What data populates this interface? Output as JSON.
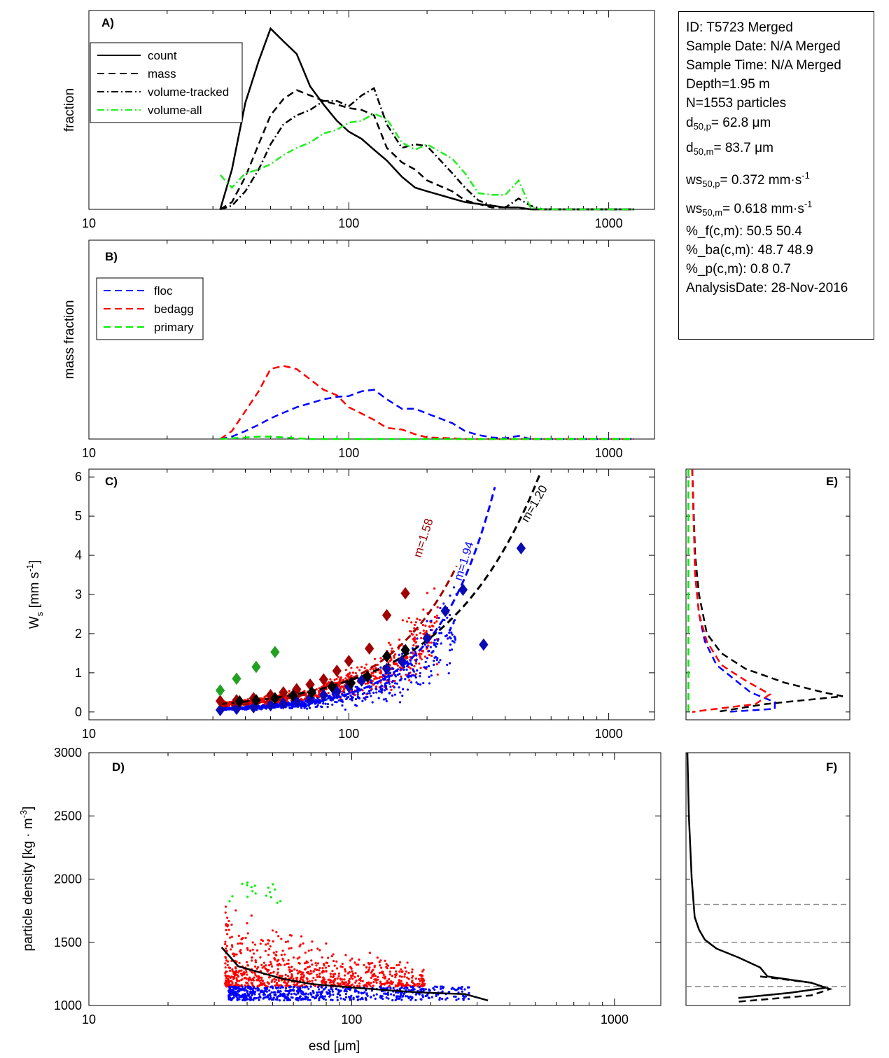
{
  "colors": {
    "floc": "#0000ff",
    "bedagg": "#ff0000",
    "primary": "#00ee00",
    "floc_dark": "#0a0ab4",
    "bedagg_dark": "#a00000",
    "primary_dark": "#22a022",
    "volume_all": "#22ee22",
    "ref_line": "#888888"
  },
  "info_box": {
    "lines": [
      "ID: T5723 Merged",
      "Sample Date: N/A Merged",
      "Sample Time: N/A Merged",
      "Depth=1.95 m",
      "N=1553 particles"
    ],
    "d50p_prefix": "d",
    "d50p_sub": "50,p",
    "d50p_value": "=  62.8 μm",
    "d50m_prefix": "d",
    "d50m_sub": "50,m",
    "d50m_value": "=  83.7 μm",
    "ws50p_prefix": "ws",
    "ws50p_sub": "50,p",
    "ws50p_value": "= 0.372 mm·s",
    "ws50p_sup": "-1",
    "ws50m_prefix": "ws",
    "ws50m_sub": "50,m",
    "ws50m_value": "= 0.618 mm·s",
    "ws50m_sup": "-1",
    "lines2": [
      "%_f(c,m): 50.5 50.4",
      "%_ba(c,m): 48.7 48.9",
      "%_p(c,m): 0.8 0.7",
      "AnalysisDate: 28-Nov-2016"
    ]
  },
  "chart_data": [
    {
      "panel": "A)",
      "type": "line",
      "x_scale": "log",
      "xlim": [
        10,
        1500
      ],
      "ylabel": "fraction",
      "x_tick_labels": [
        "10",
        "100",
        "1000"
      ],
      "legend_position": "top-left",
      "x": [
        32,
        35.5,
        40,
        45,
        50,
        56,
        63,
        71,
        80,
        90,
        100,
        112,
        125,
        140,
        160,
        180,
        200,
        250,
        280,
        315,
        355,
        400,
        450,
        500,
        560,
        1250
      ],
      "series": [
        {
          "name": "count",
          "style": "solid",
          "color": "#000000",
          "values": [
            0,
            0.22,
            0.59,
            0.82,
            1.0,
            0.93,
            0.86,
            0.68,
            0.58,
            0.49,
            0.43,
            0.39,
            0.33,
            0.27,
            0.18,
            0.12,
            0.1,
            0.06,
            0.04,
            0.03,
            0.02,
            0.01,
            0.01,
            0,
            0,
            0
          ]
        },
        {
          "name": "mass",
          "style": "dashed",
          "color": "#000000",
          "values": [
            0,
            0.04,
            0.18,
            0.36,
            0.52,
            0.61,
            0.66,
            0.63,
            0.6,
            0.58,
            0.56,
            0.55,
            0.52,
            0.34,
            0.26,
            0.22,
            0.16,
            0.1,
            0.05,
            0.03,
            0.01,
            0.01,
            0.01,
            0,
            0,
            0
          ]
        },
        {
          "name": "volume-tracked",
          "style": "dashdot",
          "color": "#000000",
          "values": [
            0,
            0.02,
            0.1,
            0.22,
            0.36,
            0.47,
            0.52,
            0.55,
            0.6,
            0.6,
            0.57,
            0.63,
            0.67,
            0.47,
            0.34,
            0.36,
            0.35,
            0.2,
            0.12,
            0.05,
            0.02,
            0.01,
            0.06,
            0.02,
            0,
            0
          ]
        },
        {
          "name": "volume-all",
          "style": "dashdot",
          "color": "#22ee22",
          "values": [
            0.19,
            0.12,
            0.2,
            0.22,
            0.25,
            0.3,
            0.34,
            0.37,
            0.42,
            0.44,
            0.48,
            0.49,
            0.53,
            0.5,
            0.37,
            0.33,
            0.36,
            0.28,
            0.2,
            0.09,
            0.08,
            0.08,
            0.16,
            0.01,
            0,
            0
          ]
        }
      ]
    },
    {
      "panel": "B)",
      "type": "line",
      "x_scale": "log",
      "xlim": [
        10,
        1500
      ],
      "ylabel": "mass fraction",
      "x_tick_labels": [
        "10",
        "100",
        "1000"
      ],
      "legend_position": "top-left",
      "x": [
        32,
        35.5,
        40,
        45,
        50,
        56,
        63,
        71,
        80,
        90,
        100,
        112,
        125,
        140,
        160,
        180,
        200,
        250,
        280,
        315,
        355,
        400,
        450,
        500,
        560,
        1250
      ],
      "series": [
        {
          "name": "floc",
          "style": "dashed",
          "color": "#0000ff",
          "values": [
            0,
            0.03,
            0.1,
            0.18,
            0.26,
            0.33,
            0.4,
            0.45,
            0.5,
            0.53,
            0.54,
            0.6,
            0.62,
            0.5,
            0.38,
            0.38,
            0.32,
            0.2,
            0.1,
            0.05,
            0.02,
            0.01,
            0.04,
            0,
            0,
            0
          ]
        },
        {
          "name": "bedagg",
          "style": "dashed",
          "color": "#ff0000",
          "values": [
            0,
            0.1,
            0.35,
            0.6,
            0.88,
            0.92,
            0.88,
            0.75,
            0.62,
            0.55,
            0.4,
            0.32,
            0.24,
            0.14,
            0.12,
            0.06,
            0.02,
            0.01,
            0,
            0,
            0,
            0,
            0,
            0,
            0,
            0
          ]
        },
        {
          "name": "primary",
          "style": "dashed",
          "color": "#00ee00",
          "values": [
            0,
            0.01,
            0.02,
            0.03,
            0.03,
            0.02,
            0.01,
            0,
            0,
            0,
            0,
            0,
            0,
            0,
            0,
            0,
            0,
            0,
            0,
            0,
            0,
            0,
            0,
            0,
            0,
            0
          ]
        }
      ]
    },
    {
      "panel": "C)",
      "type": "scatter",
      "x_scale": "log",
      "xlim": [
        10,
        1500
      ],
      "ylim": [
        -0.2,
        6.2
      ],
      "ylabel": "W",
      "ylabel_sub": "s",
      "ylabel_rest": " [mm s",
      "ylabel_sup": "-1",
      "ylabel_end": "]",
      "y_tick_labels": [
        "0",
        "1",
        "2",
        "3",
        "4",
        "5",
        "6"
      ],
      "x_tick_labels": [
        "10",
        "100",
        "1000"
      ],
      "fit_curves": [
        {
          "label": "m=1.58",
          "color": "#a00000",
          "a": 0.00057,
          "exponent": 1.58,
          "x_from": 32,
          "x_to": 260
        },
        {
          "label": "m=1.94",
          "color": "#0000ff",
          "a": 6.15e-05,
          "exponent": 1.94,
          "x_from": 32,
          "x_to": 380
        },
        {
          "label": "m=1.20",
          "color": "#000000",
          "a": 0.00317,
          "exponent": 1.2,
          "x_from": 32,
          "x_to": 570
        }
      ],
      "binned_means": [
        {
          "name": "floc",
          "color": "#0a0ab4",
          "points": [
            [
              32,
              0.05
            ],
            [
              37,
              0.08
            ],
            [
              43,
              0.12
            ],
            [
              50,
              0.17
            ],
            [
              56,
              0.22
            ],
            [
              63,
              0.27
            ],
            [
              71,
              0.35
            ],
            [
              80,
              0.43
            ],
            [
              90,
              0.52
            ],
            [
              100,
              0.65
            ],
            [
              112,
              0.8
            ],
            [
              140,
              1.1
            ],
            [
              160,
              1.3
            ],
            [
              200,
              1.88
            ],
            [
              235,
              2.58
            ],
            [
              275,
              3.12
            ],
            [
              330,
              1.72
            ],
            [
              460,
              4.18
            ]
          ]
        },
        {
          "name": "bedagg",
          "color": "#a00000",
          "points": [
            [
              32,
              0.28
            ],
            [
              37,
              0.3
            ],
            [
              43,
              0.35
            ],
            [
              50,
              0.43
            ],
            [
              56,
              0.5
            ],
            [
              63,
              0.58
            ],
            [
              71,
              0.7
            ],
            [
              80,
              0.83
            ],
            [
              90,
              1.05
            ],
            [
              100,
              1.3
            ],
            [
              120,
              1.62
            ],
            [
              140,
              2.47
            ],
            [
              165,
              3.03
            ]
          ]
        },
        {
          "name": "primary",
          "color": "#22a022",
          "points": [
            [
              32,
              0.55
            ],
            [
              37,
              0.85
            ],
            [
              44,
              1.15
            ],
            [
              52,
              1.53
            ]
          ]
        },
        {
          "name": "all",
          "color": "#000000",
          "points": [
            [
              38,
              0.27
            ],
            [
              44,
              0.3
            ],
            [
              52,
              0.35
            ],
            [
              61,
              0.42
            ],
            [
              72,
              0.5
            ],
            [
              86,
              0.65
            ],
            [
              102,
              0.74
            ],
            [
              118,
              0.9
            ],
            [
              140,
              1.42
            ],
            [
              165,
              1.58
            ]
          ]
        }
      ]
    },
    {
      "panel": "D)",
      "type": "scatter",
      "x_scale": "log",
      "xlim": [
        10,
        1500
      ],
      "ylim": [
        1000,
        3000
      ],
      "xlabel": "esd [μm]",
      "ylabel": "particle density [kg · m",
      "ylabel_sup": "-3",
      "ylabel_end": "]",
      "y_tick_labels": [
        "1000",
        "1500",
        "2000",
        "2500",
        "3000"
      ],
      "x_tick_labels": [
        "10",
        "100",
        "1000"
      ],
      "mean_curve": [
        [
          32,
          1460
        ],
        [
          37,
          1310
        ],
        [
          45,
          1260
        ],
        [
          55,
          1210
        ],
        [
          70,
          1170
        ],
        [
          90,
          1150
        ],
        [
          120,
          1130
        ],
        [
          160,
          1110
        ],
        [
          200,
          1100
        ],
        [
          270,
          1090
        ],
        [
          330,
          1040
        ]
      ]
    },
    {
      "panel": "E)",
      "type": "line",
      "orientation": "horizontal-profile",
      "profiles": [
        {
          "name": "all",
          "color": "#000000",
          "style": "dashed",
          "points": [
            [
              0.05,
              6.2
            ],
            [
              0.08,
              4
            ],
            [
              0.12,
              3
            ],
            [
              0.2,
              2
            ],
            [
              0.35,
              1.5
            ],
            [
              0.6,
              1.1
            ],
            [
              1.0,
              0.75
            ],
            [
              1.4,
              0.5
            ],
            [
              1.6,
              0.4
            ],
            [
              0.8,
              0.2
            ],
            [
              0.3,
              0.0
            ]
          ]
        },
        {
          "name": "floc",
          "color": "#0000ff",
          "style": "dashed",
          "points": [
            [
              0.05,
              6.2
            ],
            [
              0.08,
              3.5
            ],
            [
              0.12,
              2.5
            ],
            [
              0.18,
              1.8
            ],
            [
              0.3,
              1.2
            ],
            [
              0.5,
              0.8
            ],
            [
              0.65,
              0.5
            ],
            [
              0.9,
              0.25
            ],
            [
              0.9,
              0.08
            ],
            [
              0.4,
              0.0
            ]
          ]
        },
        {
          "name": "bedagg",
          "color": "#ff0000",
          "style": "dashed",
          "points": [
            [
              0.05,
              6.2
            ],
            [
              0.08,
              3.5
            ],
            [
              0.12,
              2.5
            ],
            [
              0.2,
              1.8
            ],
            [
              0.35,
              1.2
            ],
            [
              0.6,
              0.8
            ],
            [
              0.85,
              0.45
            ],
            [
              0.7,
              0.2
            ],
            [
              0.2,
              0.05
            ],
            [
              0.05,
              0.0
            ]
          ]
        },
        {
          "name": "primary",
          "color": "#00ee00",
          "style": "dashed",
          "points": [
            [
              0.01,
              6.2
            ],
            [
              0.01,
              0.0
            ]
          ]
        }
      ]
    },
    {
      "panel": "F)",
      "type": "line",
      "orientation": "horizontal-profile",
      "reference_lines": [
        1800,
        1500,
        1150
      ],
      "profiles": [
        {
          "name": "density-a",
          "color": "#000000",
          "style": "solid",
          "points": [
            [
              0.0,
              3000
            ],
            [
              0.01,
              2500
            ],
            [
              0.03,
              2000
            ],
            [
              0.05,
              1700
            ],
            [
              0.08,
              1600
            ],
            [
              0.12,
              1520
            ],
            [
              0.2,
              1450
            ],
            [
              0.35,
              1380
            ],
            [
              0.5,
              1300
            ],
            [
              0.55,
              1230
            ],
            [
              0.85,
              1180
            ],
            [
              0.95,
              1140
            ],
            [
              0.7,
              1100
            ],
            [
              0.35,
              1060
            ]
          ]
        },
        {
          "name": "density-b",
          "color": "#000000",
          "style": "dashed",
          "points": [
            [
              0.5,
              1230
            ],
            [
              0.85,
              1180
            ],
            [
              0.98,
              1130
            ],
            [
              0.85,
              1080
            ],
            [
              0.35,
              1030
            ]
          ]
        }
      ]
    }
  ],
  "panels_text": {
    "a_label": "A)",
    "b_label": "B)",
    "c_label": "C)",
    "d_label": "D)",
    "e_label": "E)",
    "f_label": "F)",
    "a_ylabel": "fraction",
    "b_ylabel": "mass fraction",
    "d_xlabel": "esd [μm]"
  }
}
